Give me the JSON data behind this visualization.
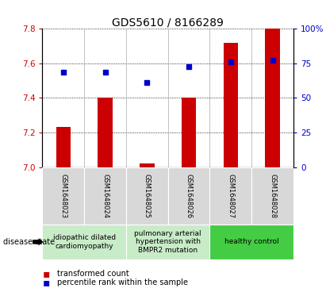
{
  "title": "GDS5610 / 8166289",
  "samples": [
    "GSM1648023",
    "GSM1648024",
    "GSM1648025",
    "GSM1648026",
    "GSM1648027",
    "GSM1648028"
  ],
  "red_values": [
    7.23,
    7.4,
    7.02,
    7.4,
    7.72,
    7.8
  ],
  "blue_values": [
    7.55,
    7.55,
    7.49,
    7.58,
    7.61,
    7.62
  ],
  "ylim_left": [
    7.0,
    7.8
  ],
  "ylim_right": [
    0,
    100
  ],
  "yticks_left": [
    7.0,
    7.2,
    7.4,
    7.6,
    7.8
  ],
  "yticks_right": [
    0,
    25,
    50,
    75,
    100
  ],
  "ytick_labels_right": [
    "0",
    "25",
    "50",
    "75",
    "100%"
  ],
  "disease_groups": [
    {
      "label": "idiopathic dilated\ncardiomyopathy",
      "start": 0,
      "end": 2,
      "color": "#c8ebc8"
    },
    {
      "label": "pulmonary arterial\nhypertension with\nBMPR2 mutation",
      "start": 2,
      "end": 4,
      "color": "#c8ebc8"
    },
    {
      "label": "healthy control",
      "start": 4,
      "end": 6,
      "color": "#44cc44"
    }
  ],
  "red_color": "#cc0000",
  "blue_color": "#0000cc",
  "bar_width": 0.35,
  "bg_color": "#d8d8d8",
  "legend_red_label": "transformed count",
  "legend_blue_label": "percentile rank within the sample",
  "disease_state_label": "disease state",
  "title_fontsize": 10,
  "tick_fontsize": 7.5,
  "sample_fontsize": 6,
  "disease_fontsize": 6.5
}
